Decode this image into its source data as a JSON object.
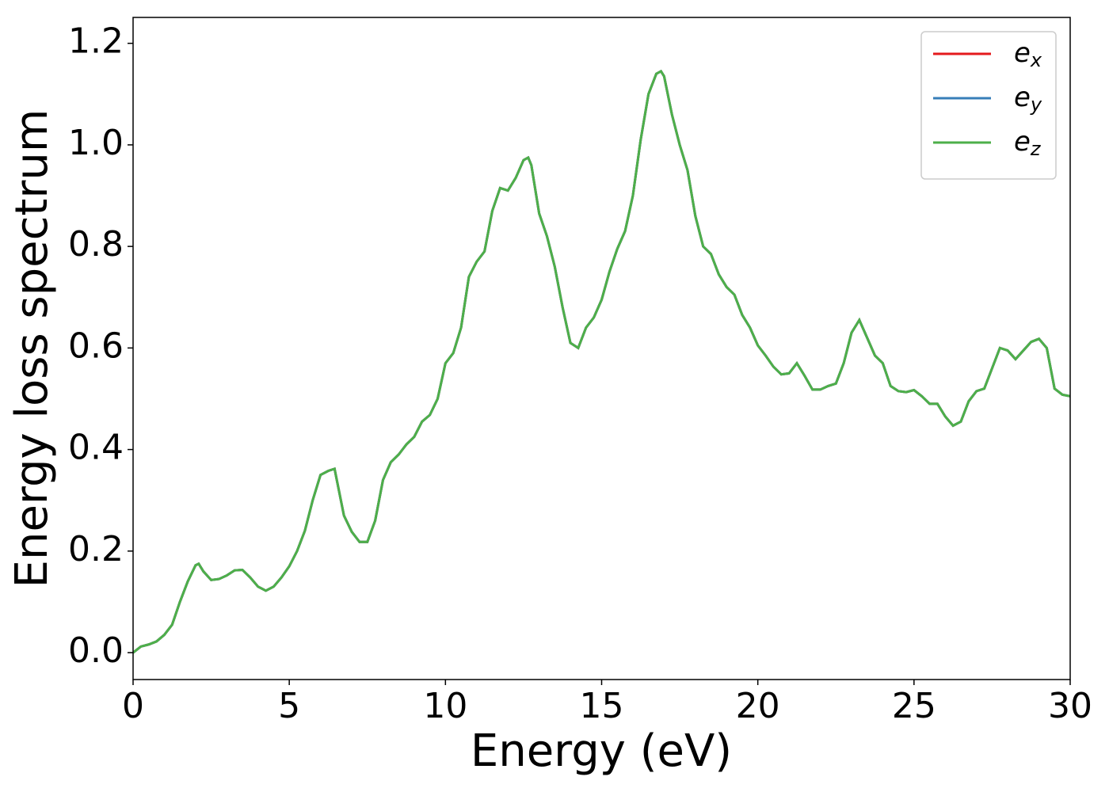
{
  "chart_data": {
    "type": "line",
    "xlabel": "Energy (eV)",
    "ylabel": "Energy loss spectrum",
    "xlim": [
      0,
      30
    ],
    "ylim": [
      -0.053,
      1.251
    ],
    "xticks": [
      0,
      5,
      10,
      15,
      20,
      25,
      30
    ],
    "yticks": [
      {
        "value": 0,
        "label": "0.0"
      },
      0.2,
      0.4,
      0.6,
      0.8,
      {
        "value": 1,
        "label": "1.0"
      },
      1.2
    ],
    "legend": "upper right",
    "x": [
      0,
      0.25,
      0.5,
      0.75,
      1.0,
      1.25,
      1.5,
      1.75,
      2.0,
      2.1,
      2.25,
      2.5,
      2.75,
      3.0,
      3.25,
      3.5,
      3.75,
      4.0,
      4.25,
      4.5,
      4.75,
      5.0,
      5.25,
      5.5,
      5.75,
      6.0,
      6.25,
      6.45,
      6.75,
      7.0,
      7.25,
      7.5,
      7.75,
      8.0,
      8.25,
      8.5,
      8.75,
      9.0,
      9.25,
      9.5,
      9.75,
      10.0,
      10.25,
      10.5,
      10.75,
      11.0,
      11.25,
      11.5,
      11.75,
      12.0,
      12.25,
      12.5,
      12.65,
      12.75,
      13.0,
      13.25,
      13.5,
      13.75,
      14.0,
      14.25,
      14.5,
      14.75,
      15.0,
      15.25,
      15.5,
      15.75,
      16.0,
      16.25,
      16.5,
      16.75,
      16.9,
      17.0,
      17.25,
      17.5,
      17.75,
      18.0,
      18.25,
      18.5,
      18.75,
      19.0,
      19.25,
      19.5,
      19.75,
      20.0,
      20.25,
      20.5,
      20.75,
      21.0,
      21.25,
      21.5,
      21.75,
      22.0,
      22.25,
      22.5,
      22.75,
      23.0,
      23.25,
      23.5,
      23.75,
      24.0,
      24.25,
      24.5,
      24.75,
      25.0,
      25.25,
      25.5,
      25.75,
      26.0,
      26.25,
      26.5,
      26.75,
      27.0,
      27.25,
      27.5,
      27.75,
      28.0,
      28.25,
      28.5,
      28.75,
      29.0,
      29.25,
      29.5,
      29.75,
      30.0
    ],
    "series": [
      {
        "name": "e",
        "name_subscript": "x",
        "color": "#e41a1c",
        "values": [
          0,
          0.012,
          0.016,
          0.022,
          0.035,
          0.055,
          0.1,
          0.14,
          0.172,
          0.175,
          0.16,
          0.143,
          0.145,
          0.152,
          0.162,
          0.163,
          0.148,
          0.13,
          0.122,
          0.13,
          0.148,
          0.17,
          0.2,
          0.24,
          0.3,
          0.35,
          0.358,
          0.362,
          0.27,
          0.238,
          0.218,
          0.218,
          0.26,
          0.34,
          0.375,
          0.39,
          0.41,
          0.425,
          0.455,
          0.468,
          0.5,
          0.57,
          0.59,
          0.64,
          0.74,
          0.77,
          0.79,
          0.87,
          0.915,
          0.91,
          0.935,
          0.97,
          0.975,
          0.96,
          0.865,
          0.82,
          0.76,
          0.68,
          0.61,
          0.6,
          0.64,
          0.66,
          0.695,
          0.75,
          0.795,
          0.83,
          0.9,
          1.01,
          1.1,
          1.14,
          1.145,
          1.135,
          1.06,
          1.0,
          0.95,
          0.86,
          0.8,
          0.785,
          0.745,
          0.72,
          0.705,
          0.665,
          0.64,
          0.605,
          0.585,
          0.563,
          0.548,
          0.55,
          0.57,
          0.545,
          0.518,
          0.518,
          0.525,
          0.53,
          0.57,
          0.63,
          0.655,
          0.62,
          0.585,
          0.57,
          0.525,
          0.515,
          0.513,
          0.517,
          0.505,
          0.49,
          0.49,
          0.465,
          0.447,
          0.455,
          0.495,
          0.515,
          0.52,
          0.56,
          0.6,
          0.595,
          0.578,
          0.595,
          0.612,
          0.618,
          0.6,
          0.52,
          0.508,
          0.505
        ]
      },
      {
        "name": "e",
        "name_subscript": "y",
        "color": "#377eb8",
        "values": [
          0,
          0.012,
          0.016,
          0.022,
          0.035,
          0.055,
          0.1,
          0.14,
          0.172,
          0.175,
          0.16,
          0.143,
          0.145,
          0.152,
          0.162,
          0.163,
          0.148,
          0.13,
          0.122,
          0.13,
          0.148,
          0.17,
          0.2,
          0.24,
          0.3,
          0.35,
          0.358,
          0.362,
          0.27,
          0.238,
          0.218,
          0.218,
          0.26,
          0.34,
          0.375,
          0.39,
          0.41,
          0.425,
          0.455,
          0.468,
          0.5,
          0.57,
          0.59,
          0.64,
          0.74,
          0.77,
          0.79,
          0.87,
          0.915,
          0.91,
          0.935,
          0.97,
          0.975,
          0.96,
          0.865,
          0.82,
          0.76,
          0.68,
          0.61,
          0.6,
          0.64,
          0.66,
          0.695,
          0.75,
          0.795,
          0.83,
          0.9,
          1.01,
          1.1,
          1.14,
          1.145,
          1.135,
          1.06,
          1.0,
          0.95,
          0.86,
          0.8,
          0.785,
          0.745,
          0.72,
          0.705,
          0.665,
          0.64,
          0.605,
          0.585,
          0.563,
          0.548,
          0.55,
          0.57,
          0.545,
          0.518,
          0.518,
          0.525,
          0.53,
          0.57,
          0.63,
          0.655,
          0.62,
          0.585,
          0.57,
          0.525,
          0.515,
          0.513,
          0.517,
          0.505,
          0.49,
          0.49,
          0.465,
          0.447,
          0.455,
          0.495,
          0.515,
          0.52,
          0.56,
          0.6,
          0.595,
          0.578,
          0.595,
          0.612,
          0.618,
          0.6,
          0.52,
          0.508,
          0.505
        ]
      },
      {
        "name": "e",
        "name_subscript": "z",
        "color": "#4daf4a",
        "values": [
          0,
          0.012,
          0.016,
          0.022,
          0.035,
          0.055,
          0.1,
          0.14,
          0.172,
          0.175,
          0.16,
          0.143,
          0.145,
          0.152,
          0.162,
          0.163,
          0.148,
          0.13,
          0.122,
          0.13,
          0.148,
          0.17,
          0.2,
          0.24,
          0.3,
          0.35,
          0.358,
          0.362,
          0.27,
          0.238,
          0.218,
          0.218,
          0.26,
          0.34,
          0.375,
          0.39,
          0.41,
          0.425,
          0.455,
          0.468,
          0.5,
          0.57,
          0.59,
          0.64,
          0.74,
          0.77,
          0.79,
          0.87,
          0.915,
          0.91,
          0.935,
          0.97,
          0.975,
          0.96,
          0.865,
          0.82,
          0.76,
          0.68,
          0.61,
          0.6,
          0.64,
          0.66,
          0.695,
          0.75,
          0.795,
          0.83,
          0.9,
          1.01,
          1.1,
          1.14,
          1.145,
          1.135,
          1.06,
          1.0,
          0.95,
          0.86,
          0.8,
          0.785,
          0.745,
          0.72,
          0.705,
          0.665,
          0.64,
          0.605,
          0.585,
          0.563,
          0.548,
          0.55,
          0.57,
          0.545,
          0.518,
          0.518,
          0.525,
          0.53,
          0.57,
          0.63,
          0.655,
          0.62,
          0.585,
          0.57,
          0.525,
          0.515,
          0.513,
          0.517,
          0.505,
          0.49,
          0.49,
          0.465,
          0.447,
          0.455,
          0.495,
          0.515,
          0.52,
          0.56,
          0.6,
          0.595,
          0.578,
          0.595,
          0.612,
          0.618,
          0.6,
          0.52,
          0.508,
          0.505
        ]
      }
    ]
  }
}
